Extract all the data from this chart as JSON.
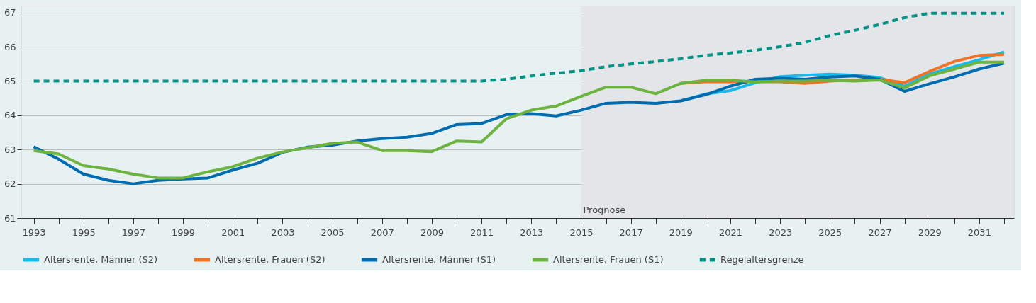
{
  "chart_data": {
    "type": "line",
    "x": [
      1993,
      1994,
      1995,
      1996,
      1997,
      1998,
      1999,
      2000,
      2001,
      2002,
      2003,
      2004,
      2005,
      2006,
      2007,
      2008,
      2009,
      2010,
      2011,
      2012,
      2013,
      2014,
      2015,
      2016,
      2017,
      2018,
      2019,
      2020,
      2021,
      2022,
      2023,
      2024,
      2025,
      2026,
      2027,
      2028,
      2029,
      2030,
      2031,
      2032
    ],
    "series": [
      {
        "name": "Altersrente, Männer (S2)",
        "color": "#1ab9ea",
        "line_style": "solid",
        "values": [
          null,
          null,
          null,
          null,
          null,
          null,
          null,
          null,
          null,
          null,
          null,
          null,
          null,
          null,
          null,
          null,
          null,
          null,
          null,
          null,
          null,
          null,
          null,
          null,
          null,
          null,
          64.42,
          64.62,
          64.72,
          64.95,
          65.13,
          65.17,
          65.2,
          65.17,
          65.1,
          64.85,
          65.2,
          65.42,
          65.62,
          65.85
        ]
      },
      {
        "name": "Altersrente, Frauen (S2)",
        "color": "#f07225",
        "line_style": "solid",
        "values": [
          null,
          null,
          null,
          null,
          null,
          null,
          null,
          null,
          null,
          null,
          null,
          null,
          null,
          null,
          null,
          null,
          null,
          null,
          null,
          null,
          null,
          null,
          null,
          null,
          null,
          null,
          64.93,
          64.98,
          64.98,
          64.98,
          64.98,
          64.93,
          65.0,
          65.03,
          65.05,
          64.95,
          65.28,
          65.57,
          65.75,
          65.78
        ]
      },
      {
        "name": "Altersrente, Männer (S1)",
        "color": "#006cb0",
        "line_style": "solid",
        "values": [
          63.08,
          62.72,
          62.28,
          62.1,
          62.0,
          62.1,
          62.14,
          62.17,
          62.4,
          62.6,
          62.92,
          63.07,
          63.13,
          63.25,
          63.32,
          63.36,
          63.47,
          63.73,
          63.76,
          64.02,
          64.05,
          63.98,
          64.15,
          64.35,
          64.38,
          64.35,
          64.42,
          64.6,
          64.85,
          65.05,
          65.08,
          65.05,
          65.12,
          65.15,
          65.05,
          64.7,
          64.92,
          65.12,
          65.35,
          65.52
        ]
      },
      {
        "name": "Altersrente, Frauen (S1)",
        "color": "#6cb33f",
        "line_style": "solid",
        "values": [
          62.97,
          62.87,
          62.53,
          62.43,
          62.28,
          62.17,
          62.17,
          62.35,
          62.5,
          62.75,
          62.93,
          63.05,
          63.18,
          63.22,
          62.97,
          62.97,
          62.94,
          63.25,
          63.22,
          63.9,
          64.15,
          64.27,
          64.55,
          64.82,
          64.82,
          64.63,
          64.93,
          65.02,
          65.02,
          64.98,
          65.0,
          65.0,
          65.02,
          65.0,
          65.03,
          64.8,
          65.15,
          65.35,
          65.55,
          65.55
        ]
      },
      {
        "name": "Regelaltersgrenze",
        "color": "#009385",
        "line_style": "dashed",
        "values": [
          65,
          65,
          65,
          65,
          65,
          65,
          65,
          65,
          65,
          65,
          65,
          65,
          65,
          65,
          65,
          65,
          65,
          65,
          65,
          65.05,
          65.15,
          65.23,
          65.3,
          65.42,
          65.5,
          65.57,
          65.65,
          65.75,
          65.82,
          65.9,
          66.0,
          66.13,
          66.33,
          66.48,
          66.65,
          66.85,
          66.98,
          66.98,
          66.98,
          66.98
        ]
      }
    ],
    "xlim": [
      1992.5,
      2032.4
    ],
    "xticks": [
      1993,
      {
        "value": 1994,
        "label": null
      },
      1995,
      {
        "value": 1996,
        "label": null
      },
      1997,
      {
        "value": 1998,
        "label": null
      },
      1999,
      {
        "value": 2000,
        "label": null
      },
      2001,
      {
        "value": 2002,
        "label": null
      },
      2003,
      {
        "value": 2004,
        "label": null
      },
      2005,
      {
        "value": 2006,
        "label": null
      },
      2007,
      {
        "value": 2008,
        "label": null
      },
      2009,
      {
        "value": 2010,
        "label": null
      },
      2011,
      {
        "value": 2012,
        "label": null
      },
      2013,
      {
        "value": 2014,
        "label": null
      },
      2015,
      {
        "value": 2016,
        "label": null
      },
      2017,
      {
        "value": 2018,
        "label": null
      },
      2019,
      {
        "value": 2020,
        "label": null
      },
      2021,
      {
        "value": 2022,
        "label": null
      },
      2023,
      {
        "value": 2024,
        "label": null
      },
      2025,
      {
        "value": 2026,
        "label": null
      },
      2027,
      {
        "value": 2028,
        "label": null
      },
      2029,
      {
        "value": 2030,
        "label": null
      },
      2031,
      {
        "value": 2032,
        "label": null
      }
    ],
    "ylim": [
      61,
      67.2
    ],
    "yticks": [
      61,
      62,
      63,
      64,
      65,
      66,
      67
    ],
    "bands": [
      {
        "axis": "x",
        "from": 2015,
        "to": 2032.4,
        "label": "Prognose",
        "color": "#e4e5e8"
      }
    ],
    "grid": "y",
    "legend": "bottom",
    "marker": "none"
  }
}
